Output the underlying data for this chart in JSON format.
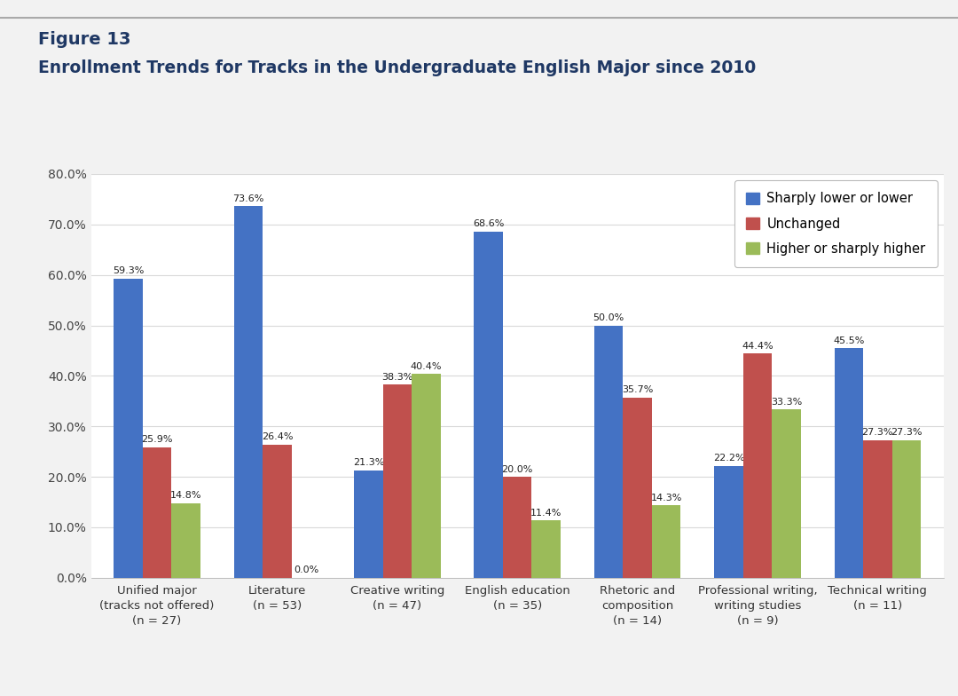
{
  "figure_label": "Figure 13",
  "title": "Enrollment Trends for Tracks in the Undergraduate English Major since 2010",
  "categories": [
    "Unified major\n(tracks not offered)\n(n = 27)",
    "Literature\n(n = 53)",
    "Creative writing\n(n = 47)",
    "English education\n(n = 35)",
    "Rhetoric and\ncomposition\n(n = 14)",
    "Professional writing,\nwriting studies\n(n = 9)",
    "Technical writing\n(n = 11)"
  ],
  "series": {
    "Sharply lower or lower": [
      59.3,
      73.6,
      21.3,
      68.6,
      50.0,
      22.2,
      45.5
    ],
    "Unchanged": [
      25.9,
      26.4,
      38.3,
      20.0,
      35.7,
      44.4,
      27.3
    ],
    "Higher or sharply higher": [
      14.8,
      0.0,
      40.4,
      11.4,
      14.3,
      33.3,
      27.3
    ]
  },
  "colors": {
    "Sharply lower or lower": "#4472C4",
    "Unchanged": "#C0504D",
    "Higher or sharply higher": "#9BBB59"
  },
  "ylim": [
    0,
    80
  ],
  "yticks": [
    0,
    10,
    20,
    30,
    40,
    50,
    60,
    70,
    80
  ],
  "ytick_labels": [
    "0.0%",
    "10.0%",
    "20.0%",
    "30.0%",
    "40.0%",
    "50.0%",
    "60.0%",
    "70.0%",
    "80.0%"
  ],
  "background_color": "#f2f2f2",
  "plot_bg_color": "#ffffff",
  "grid_color": "#d9d9d9",
  "title_color": "#1F3864",
  "bar_width": 0.24,
  "value_label_fontsize": 8.0,
  "axis_tick_fontsize": 10.0,
  "cat_label_fontsize": 9.5,
  "legend_fontsize": 10.5
}
